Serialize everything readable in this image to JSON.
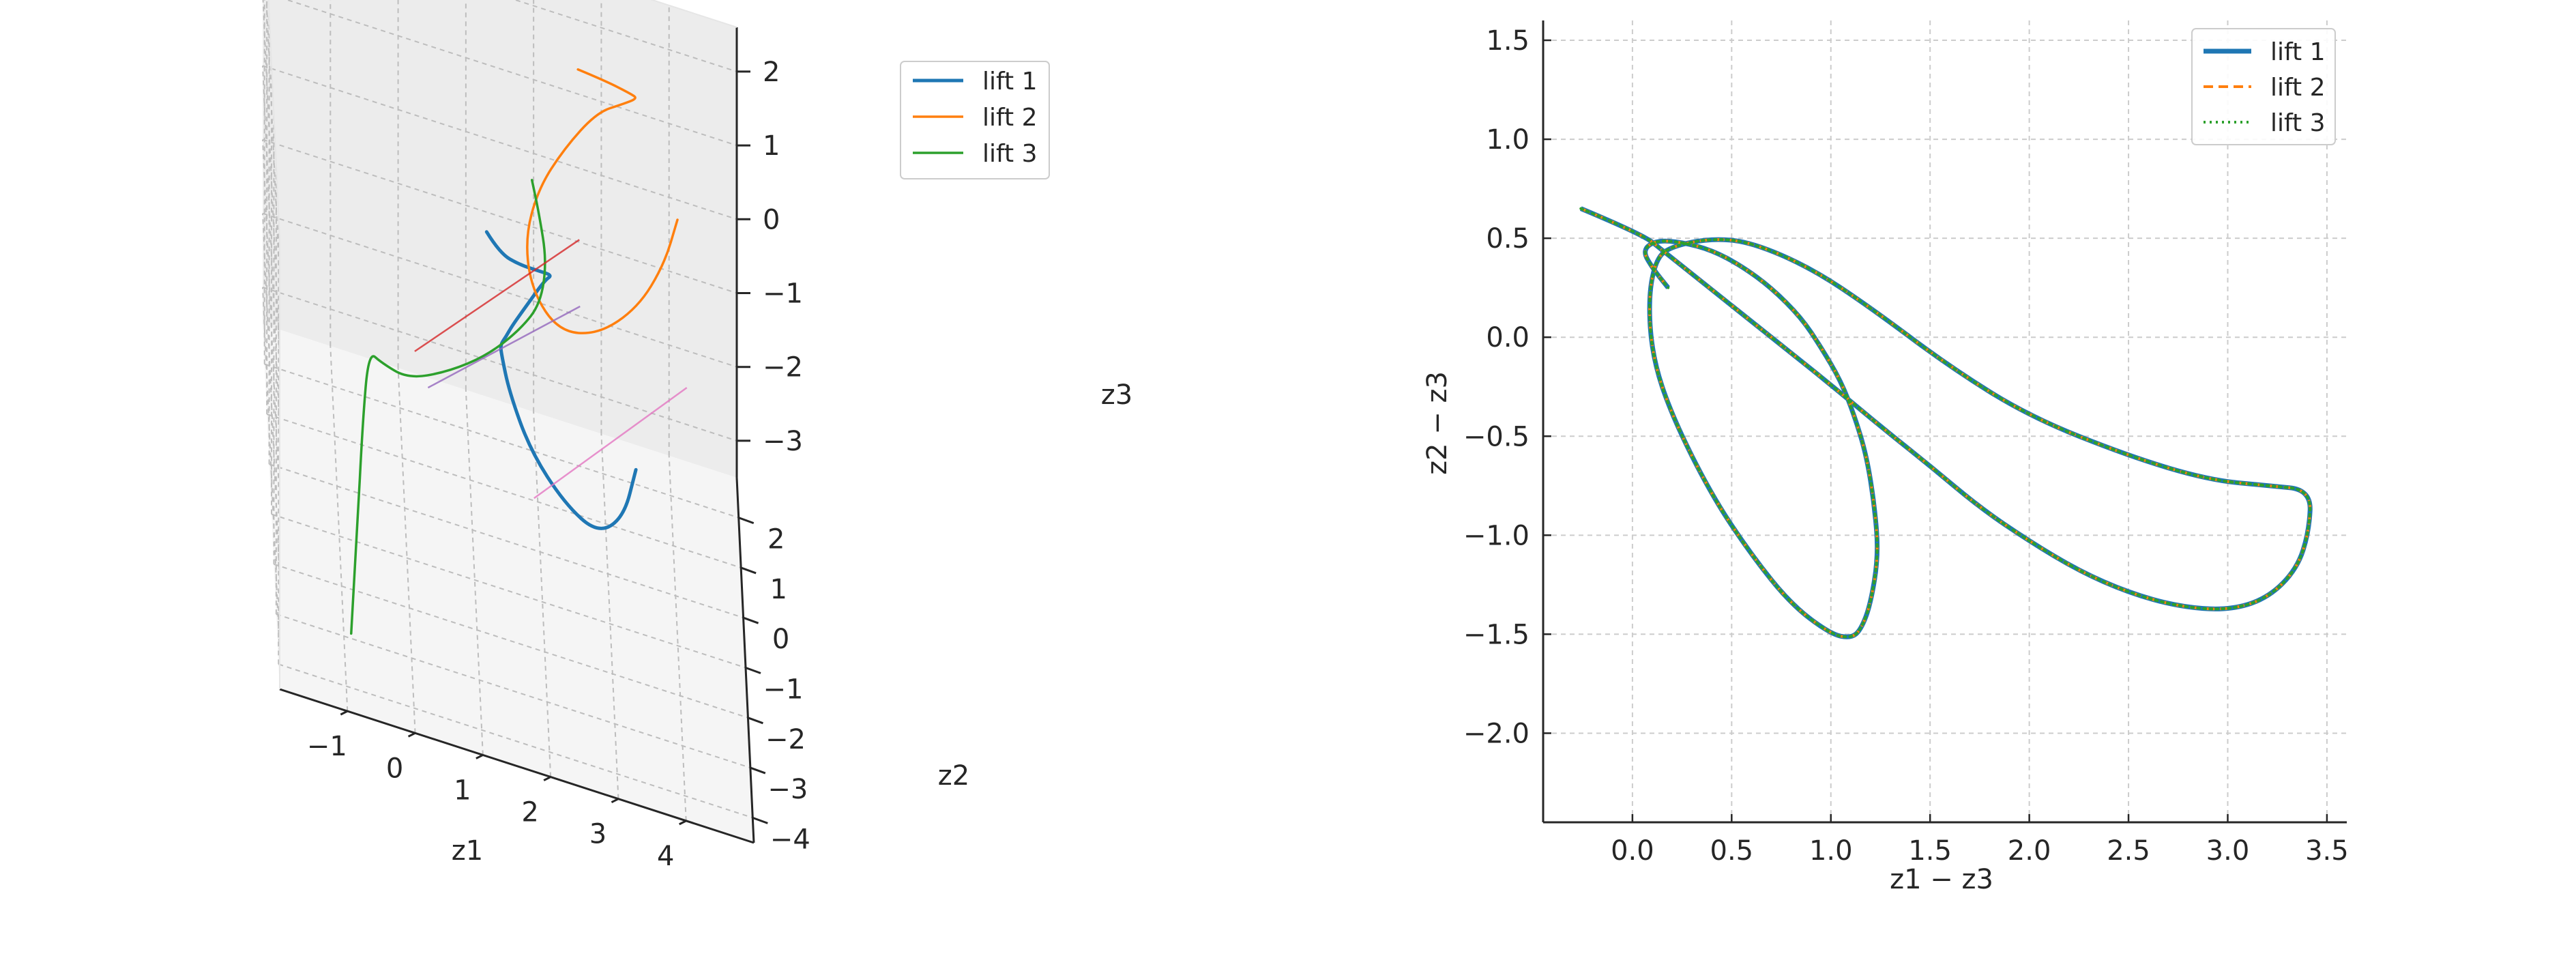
{
  "chart_data": [
    {
      "type": "line",
      "projection": "3d",
      "axes": {
        "x": {
          "label": "z1",
          "ticks": [
            "−1",
            "0",
            "1",
            "2",
            "3",
            "4"
          ],
          "range": [
            -2,
            5
          ]
        },
        "y": {
          "label": "z2",
          "ticks": [
            "−4",
            "−3",
            "−2",
            "−1",
            "0",
            "1",
            "2"
          ],
          "range": [
            -4.5,
            2.8
          ]
        },
        "z": {
          "label": "z3",
          "ticks": [
            "−3",
            "−2",
            "−1",
            "0",
            "1",
            "2"
          ],
          "range": [
            -3.5,
            2.6
          ]
        }
      },
      "grid": true,
      "legend": {
        "placement": "top-right",
        "entries": [
          "lift 1",
          "lift 2",
          "lift 3"
        ]
      },
      "colors": {
        "lift 1": "#1f77b4",
        "lift 2": "#ff7f0e",
        "lift 3": "#2ca02c",
        "connector_a": "#d62728",
        "connector_b": "#9467bd",
        "connector_c": "#e377c2"
      },
      "series": [
        {
          "name": "lift 1",
          "points": [
            [
              1.2,
              -0.3,
              0.8
            ],
            [
              1.4,
              -0.2,
              0.5
            ],
            [
              1.7,
              0.0,
              0.3
            ],
            [
              2.0,
              0.3,
              0.1
            ],
            [
              2.2,
              0.6,
              -0.1
            ],
            [
              2.1,
              0.9,
              -0.4
            ],
            [
              1.8,
              0.8,
              -0.8
            ],
            [
              1.6,
              0.5,
              -0.9
            ],
            [
              1.5,
              0.1,
              -0.8
            ],
            [
              1.4,
              -0.4,
              -0.6
            ],
            [
              1.4,
              -0.9,
              -0.4
            ],
            [
              1.5,
              -1.3,
              -0.6
            ],
            [
              1.8,
              -1.6,
              -1.1
            ],
            [
              2.3,
              -1.7,
              -1.6
            ],
            [
              2.8,
              -1.5,
              -2.0
            ],
            [
              3.2,
              -1.0,
              -2.0
            ],
            [
              3.4,
              -0.4,
              -1.7
            ]
          ]
        },
        {
          "name": "lift 2",
          "points": [
            [
              2.6,
              1.2,
              2.4
            ],
            [
              3.0,
              1.3,
              2.3
            ],
            [
              3.4,
              1.5,
              2.1
            ],
            [
              3.5,
              1.9,
              1.8
            ],
            [
              3.3,
              2.0,
              1.6
            ],
            [
              2.9,
              1.8,
              1.5
            ],
            [
              2.4,
              1.3,
              1.2
            ],
            [
              2.0,
              0.9,
              0.8
            ],
            [
              1.8,
              0.7,
              0.2
            ],
            [
              1.9,
              0.6,
              -0.4
            ],
            [
              2.3,
              0.7,
              -0.9
            ],
            [
              2.9,
              1.2,
              -1.1
            ],
            [
              3.5,
              1.7,
              -0.9
            ],
            [
              3.9,
              2.0,
              -0.4
            ],
            [
              4.1,
              2.1,
              0.2
            ]
          ]
        },
        {
          "name": "lift 3",
          "points": [
            [
              -0.9,
              -3.2,
              -3.3
            ],
            [
              -0.8,
              -2.8,
              -2.2
            ],
            [
              -0.7,
              -2.3,
              -1.0
            ],
            [
              -0.6,
              -2.0,
              -0.2
            ],
            [
              -0.4,
              -1.7,
              -0.5
            ],
            [
              0.0,
              -1.4,
              -0.8
            ],
            [
              0.6,
              -1.0,
              -0.8
            ],
            [
              1.2,
              -0.7,
              -0.6
            ],
            [
              1.7,
              -0.4,
              -0.3
            ],
            [
              2.0,
              -0.2,
              0.0
            ],
            [
              2.1,
              0.1,
              0.4
            ],
            [
              2.0,
              0.4,
              0.8
            ],
            [
              1.9,
              0.6,
              1.1
            ]
          ]
        },
        {
          "name": "",
          "connector": true,
          "points": [
            [
              0.1,
              -1.4,
              -0.4
            ],
            [
              2.6,
              0.6,
              0.5
            ]
          ]
        },
        {
          "name": "",
          "connector": true,
          "points": [
            [
              0.3,
              -1.3,
              -0.9
            ],
            [
              2.6,
              0.3,
              -0.2
            ]
          ]
        },
        {
          "name": "",
          "connector": true,
          "points": [
            [
              1.9,
              -0.3,
              -2.6
            ],
            [
              4.2,
              1.0,
              -1.3
            ]
          ]
        }
      ]
    },
    {
      "type": "line",
      "xlabel": "z1 − z3",
      "ylabel": "z2 − z3",
      "xlim": [
        -0.45,
        3.6
      ],
      "ylim": [
        -2.45,
        1.6
      ],
      "xticks": [
        0.0,
        0.5,
        1.0,
        1.5,
        2.0,
        2.5,
        3.0,
        3.5
      ],
      "xtick_labels": [
        "0.0",
        "0.5",
        "1.0",
        "1.5",
        "2.0",
        "2.5",
        "3.0",
        "3.5"
      ],
      "yticks": [
        -2.0,
        -1.5,
        -1.0,
        -0.5,
        0.0,
        0.5,
        1.0,
        1.5
      ],
      "ytick_labels": [
        "−2.0",
        "−1.5",
        "−1.0",
        "−0.5",
        "0.0",
        "0.5",
        "1.0",
        "1.5"
      ],
      "grid": true,
      "legend": {
        "placement": "top-right"
      },
      "series": [
        {
          "name": "lift 1",
          "color": "#1f77b4",
          "style": "solid"
        },
        {
          "name": "lift 2",
          "color": "#ff7f0e",
          "style": "dashed"
        },
        {
          "name": "lift 3",
          "color": "#2ca02c",
          "style": "dotted"
        }
      ],
      "x": [
        -0.26,
        0.05,
        0.15,
        0.3,
        0.5,
        0.75,
        1.0,
        1.25,
        1.5,
        1.75,
        2.0,
        2.25,
        2.5,
        2.75,
        3.0,
        3.2,
        3.35,
        3.41,
        3.42,
        3.2,
        2.9,
        2.5,
        2.0,
        1.6,
        1.2,
        0.9,
        0.6,
        0.4,
        0.2,
        0.12,
        0.08,
        0.1,
        0.2,
        0.4,
        0.6,
        0.8,
        1.0,
        1.1,
        1.15,
        1.2,
        1.24,
        1.22,
        1.18,
        1.12,
        1.05,
        0.95,
        0.85,
        0.7,
        0.55,
        0.4,
        0.25,
        0.12,
        0.05,
        0.1,
        0.18
      ],
      "y": [
        0.65,
        0.52,
        0.44,
        0.32,
        0.16,
        -0.04,
        -0.24,
        -0.45,
        -0.65,
        -0.86,
        -1.03,
        -1.18,
        -1.29,
        -1.36,
        -1.38,
        -1.32,
        -1.17,
        -0.98,
        -0.77,
        -0.75,
        -0.72,
        -0.6,
        -0.4,
        -0.15,
        0.15,
        0.35,
        0.48,
        0.5,
        0.46,
        0.4,
        0.2,
        -0.1,
        -0.4,
        -0.8,
        -1.1,
        -1.35,
        -1.5,
        -1.52,
        -1.48,
        -1.35,
        -1.1,
        -0.85,
        -0.6,
        -0.4,
        -0.22,
        -0.05,
        0.1,
        0.25,
        0.36,
        0.44,
        0.48,
        0.49,
        0.44,
        0.35,
        0.25
      ]
    }
  ]
}
